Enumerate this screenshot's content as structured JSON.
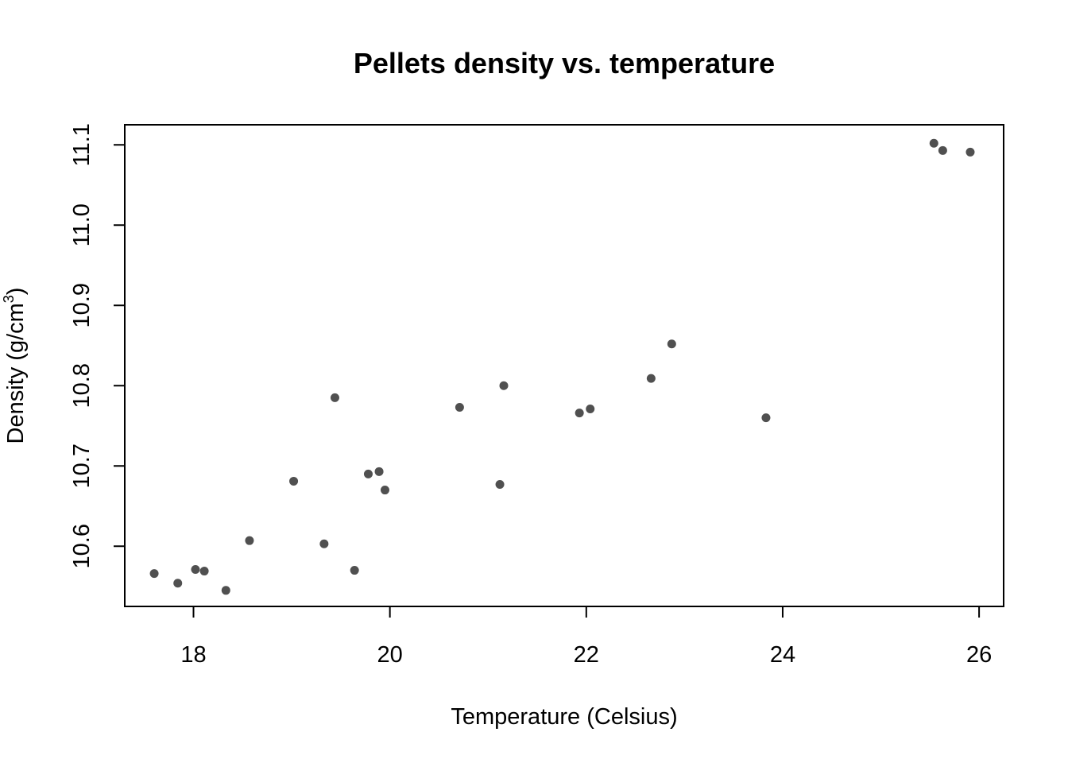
{
  "chart_data": {
    "type": "scatter",
    "title": "Pellets density vs. temperature",
    "xlabel": "Temperature (Celsius)",
    "ylabel_main": "Density (g/cm",
    "ylabel_sup": "3",
    "ylabel_close": ")",
    "xlim": [
      17.3,
      26.25
    ],
    "ylim": [
      10.525,
      11.125
    ],
    "xticks": [
      18,
      20,
      22,
      24,
      26
    ],
    "xtick_labels": [
      "18",
      "20",
      "22",
      "24",
      "26"
    ],
    "yticks": [
      10.6,
      10.7,
      10.8,
      10.9,
      11.0,
      11.1
    ],
    "ytick_labels": [
      "10.6",
      "10.7",
      "10.8",
      "10.9",
      "11.0",
      "11.1"
    ],
    "point_color": "#505050",
    "grid": false,
    "legend": "none",
    "points": [
      {
        "x": 17.6,
        "y": 10.566
      },
      {
        "x": 17.84,
        "y": 10.554
      },
      {
        "x": 18.02,
        "y": 10.571
      },
      {
        "x": 18.11,
        "y": 10.569
      },
      {
        "x": 18.33,
        "y": 10.545
      },
      {
        "x": 18.57,
        "y": 10.607
      },
      {
        "x": 19.02,
        "y": 10.681
      },
      {
        "x": 19.33,
        "y": 10.603
      },
      {
        "x": 19.44,
        "y": 10.785
      },
      {
        "x": 19.64,
        "y": 10.57
      },
      {
        "x": 19.78,
        "y": 10.69
      },
      {
        "x": 19.89,
        "y": 10.693
      },
      {
        "x": 19.95,
        "y": 10.67
      },
      {
        "x": 20.71,
        "y": 10.773
      },
      {
        "x": 21.12,
        "y": 10.677
      },
      {
        "x": 21.16,
        "y": 10.8
      },
      {
        "x": 21.93,
        "y": 10.766
      },
      {
        "x": 22.04,
        "y": 10.771
      },
      {
        "x": 22.66,
        "y": 10.809
      },
      {
        "x": 22.87,
        "y": 10.852
      },
      {
        "x": 23.83,
        "y": 10.76
      },
      {
        "x": 25.54,
        "y": 11.102
      },
      {
        "x": 25.63,
        "y": 11.093
      },
      {
        "x": 25.91,
        "y": 11.091
      }
    ]
  }
}
